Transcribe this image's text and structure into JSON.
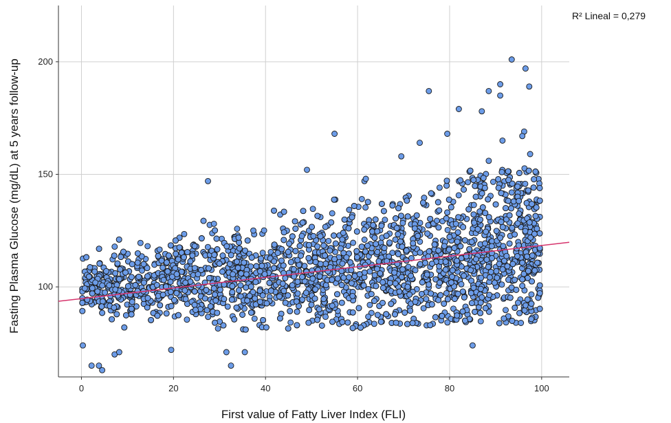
{
  "chart_data": {
    "type": "scatter",
    "xlabel": "First value of Fatty Liver Index (FLI)",
    "ylabel": "Fasting Plasma Glucose (mg/dL) at 5 years follow-up",
    "xlim": [
      -5,
      106
    ],
    "ylim": [
      60,
      225
    ],
    "xticks": [
      0,
      20,
      40,
      60,
      80,
      100
    ],
    "yticks": [
      100,
      150,
      200
    ],
    "grid": true,
    "annotation": "R² Lineal = 0,279",
    "fit_line": {
      "x": [
        -5,
        106
      ],
      "y": [
        93.6,
        119.8
      ]
    },
    "point_color": "#6C9CE8",
    "point_edge_color": "#1a1a1a",
    "line_color": "#D6336C",
    "outliers": [
      [
        93.5,
        201
      ],
      [
        96.5,
        197
      ],
      [
        91,
        190
      ],
      [
        88.5,
        187
      ],
      [
        97.3,
        189
      ],
      [
        75.5,
        187
      ],
      [
        91,
        185
      ],
      [
        82,
        179
      ],
      [
        87,
        178
      ],
      [
        91.5,
        165
      ],
      [
        96.2,
        169
      ],
      [
        95.8,
        167
      ],
      [
        73.5,
        164
      ],
      [
        79.5,
        168
      ],
      [
        55,
        168
      ],
      [
        97.5,
        159
      ],
      [
        69.5,
        158
      ],
      [
        88.5,
        156
      ],
      [
        49,
        152
      ],
      [
        27.5,
        147
      ],
      [
        61.5,
        147
      ],
      [
        61.8,
        148
      ],
      [
        85,
        74
      ],
      [
        95.5,
        84
      ],
      [
        0.3,
        74
      ],
      [
        3.8,
        65
      ],
      [
        4.5,
        63
      ],
      [
        2.2,
        65
      ],
      [
        32.5,
        65
      ],
      [
        31.5,
        71
      ],
      [
        35.5,
        71
      ],
      [
        19.5,
        72
      ],
      [
        7.2,
        70
      ],
      [
        8.2,
        71
      ]
    ]
  }
}
